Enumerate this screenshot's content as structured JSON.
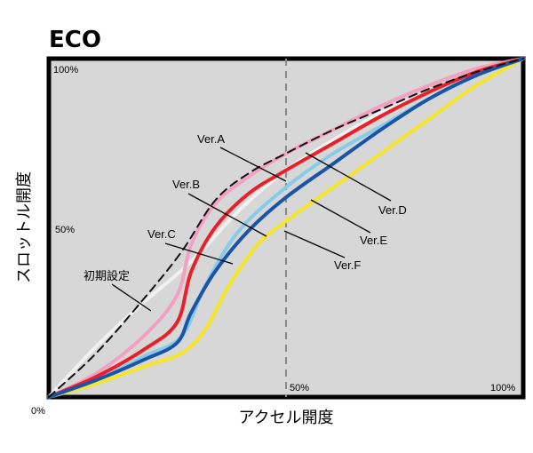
{
  "chart_data": {
    "type": "line",
    "title": "ECO",
    "xlabel": "アクセル開度",
    "ylabel": "スロットル開度",
    "xlim": [
      0,
      100
    ],
    "ylim": [
      0,
      100
    ],
    "ticks": {
      "origin": "0%",
      "y_mid": "50%",
      "y_top": "100%",
      "x_mid": "50%",
      "x_right": "100%"
    },
    "reference_line_x": 50,
    "series": [
      {
        "name": "初期設定",
        "color": "#111111",
        "dashed": true,
        "x": [
          0,
          10,
          20,
          28,
          35,
          42,
          50,
          60,
          70,
          80,
          90,
          100
        ],
        "y": [
          0,
          13,
          29,
          43,
          58,
          66,
          72,
          79,
          85,
          91,
          96,
          100
        ]
      },
      {
        "name": "Ver.A",
        "color": "#f5a0c0",
        "dashed": false,
        "x": [
          0,
          10,
          20,
          27,
          30,
          35,
          42,
          50,
          60,
          70,
          80,
          90,
          100
        ],
        "y": [
          0,
          7,
          18,
          30,
          45,
          57,
          65,
          72,
          79,
          86,
          92,
          97,
          100
        ]
      },
      {
        "name": "Ver.B",
        "color": "#e8202a",
        "dashed": false,
        "x": [
          0,
          10,
          20,
          27,
          30,
          35,
          42,
          50,
          60,
          70,
          80,
          90,
          100
        ],
        "y": [
          0,
          6,
          14,
          22,
          37,
          50,
          60,
          67,
          75,
          83,
          90,
          96,
          100
        ]
      },
      {
        "name": "Ver.C",
        "color": "#87cbe8",
        "dashed": false,
        "x": [
          0,
          10,
          20,
          28,
          33,
          40,
          50,
          60,
          70,
          80,
          90,
          100
        ],
        "y": [
          0,
          5,
          12,
          18,
          33,
          49,
          62,
          72,
          80,
          88,
          95,
          100
        ]
      },
      {
        "name": "Ver.D",
        "color": "#f0f0f0",
        "dashed": false,
        "x": [
          0,
          10,
          20,
          30,
          40,
          50,
          60,
          70,
          80,
          90,
          100
        ],
        "y": [
          0,
          15,
          28,
          40,
          55,
          67,
          76,
          84,
          90,
          96,
          100
        ]
      },
      {
        "name": "Ver.E",
        "color": "#1a54a8",
        "dashed": false,
        "x": [
          0,
          10,
          20,
          27,
          30,
          35,
          42,
          50,
          60,
          70,
          80,
          90,
          100
        ],
        "y": [
          0,
          5,
          11,
          16,
          25,
          37,
          49,
          59,
          69,
          79,
          88,
          95,
          100
        ]
      },
      {
        "name": "Ver.F",
        "color": "#f5e62a",
        "dashed": false,
        "x": [
          0,
          10,
          20,
          28,
          33,
          38,
          44,
          50,
          60,
          70,
          80,
          90,
          100
        ],
        "y": [
          0,
          4,
          9,
          13,
          20,
          33,
          45,
          52,
          62,
          72,
          82,
          92,
          100
        ]
      }
    ],
    "callouts": [
      {
        "text": "Ver.A",
        "series": "Ver.A"
      },
      {
        "text": "Ver.B",
        "series": "Ver.B"
      },
      {
        "text": "Ver.C",
        "series": "Ver.C"
      },
      {
        "text": "初期設定",
        "series": "初期設定"
      },
      {
        "text": "Ver.D",
        "series": "Ver.D"
      },
      {
        "text": "Ver.E",
        "series": "Ver.E"
      },
      {
        "text": "Ver.F",
        "series": "Ver.F"
      }
    ],
    "grid": false,
    "legend": "callouts"
  }
}
